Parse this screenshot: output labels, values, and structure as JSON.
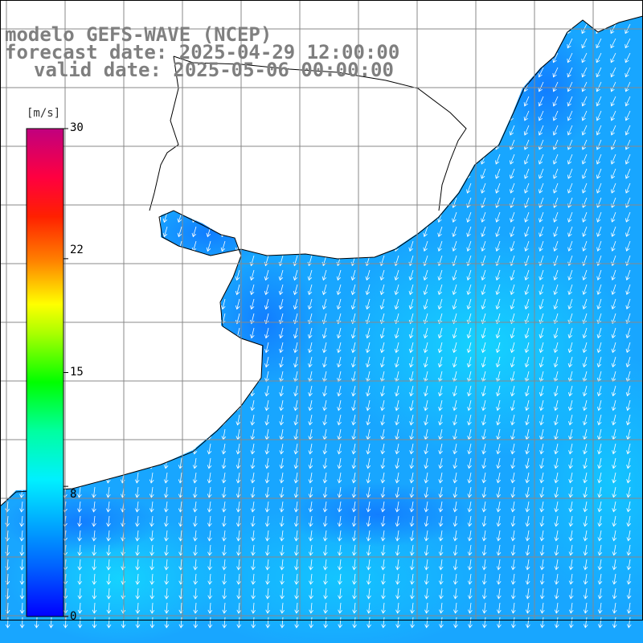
{
  "title": {
    "line1": "modelo GEFS-WAVE (NCEP)",
    "line2": "forecast date: 2025-04-29 12:00:00",
    "line3": "valid date: 2025-05-06 00:00:00"
  },
  "colorbar": {
    "unit": "[m/s]",
    "min": 0,
    "max": 30,
    "ticks": [
      "30",
      "22",
      "15",
      "8",
      "0"
    ],
    "tick_values": [
      30,
      22,
      15,
      8,
      0
    ],
    "colors": [
      "#0000ff",
      "#0090ff",
      "#00ffff",
      "#00ff80",
      "#00ff00",
      "#ffff00",
      "#ff8000",
      "#ff0000",
      "#ff0080",
      "#c0007f"
    ]
  },
  "map": {
    "ocean_color": "#1e90ff",
    "land_color": "#ffffff",
    "grid_color": "#888888",
    "arrow_color": "#ffffff",
    "coastline_color": "#000000",
    "wind_direction": "north-northeast to south-southwest"
  }
}
